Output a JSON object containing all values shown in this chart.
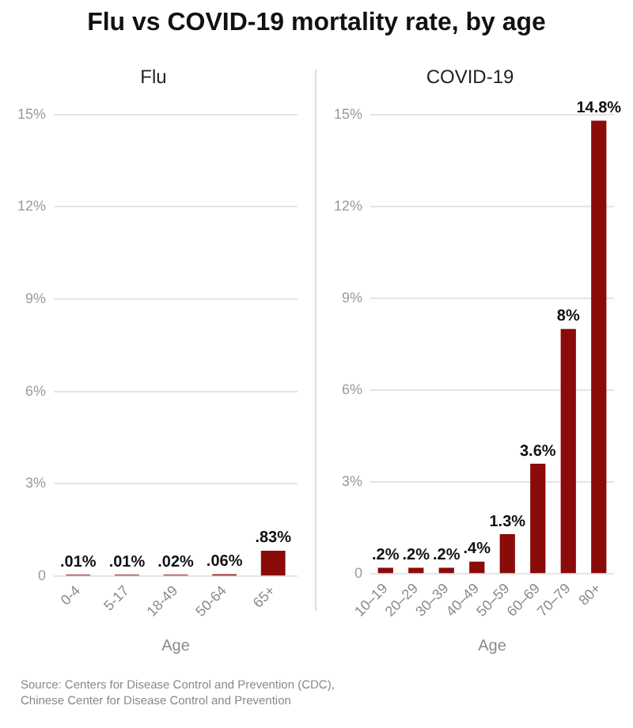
{
  "chart_data": [
    {
      "type": "bar",
      "title": "Flu vs COVID-19 mortality rate, by age",
      "subtitle": "Flu",
      "xlabel": "Age",
      "categories": [
        "0-4",
        "5-17",
        "18-49",
        "50-64",
        "65+"
      ],
      "series": [
        {
          "color": "#8b0a0a",
          "values": [
            0.01,
            0.01,
            0.02,
            0.06,
            0.83
          ],
          "value_labels": [
            ".01%",
            ".01%",
            ".02%",
            ".06%",
            ".83%"
          ]
        }
      ],
      "ylim": [
        0,
        15
      ],
      "yticks": [
        0,
        {
          "value": 3,
          "label": "3%"
        },
        {
          "value": 6,
          "label": "6%"
        },
        {
          "value": 9,
          "label": "9%"
        },
        {
          "value": 12,
          "label": "12%"
        },
        {
          "value": 15,
          "label": "15%"
        }
      ],
      "grid": "y",
      "annotations": [
        "Source: Centers for Disease Control and Prevention (CDC),",
        "Chinese Center for Disease Control and Prevention"
      ]
    },
    {
      "type": "bar",
      "title": "COVID-19",
      "xlabel": "Age",
      "categories": [
        "10–19",
        "20–29",
        "30–39",
        "40–49",
        "50–59",
        "60–69",
        "70–79",
        "80+"
      ],
      "series": [
        {
          "color": "#8b0a0a",
          "values": [
            0.2,
            0.2,
            0.2,
            0.4,
            1.3,
            3.6,
            8,
            14.8
          ],
          "value_labels": [
            ".2%",
            ".2%",
            ".2%",
            ".4%",
            "1.3%",
            "3.6%",
            "8%",
            "14.8%"
          ]
        }
      ],
      "ylim": [
        0,
        15
      ],
      "yticks": [
        0,
        {
          "value": 3,
          "label": "3%"
        },
        {
          "value": 6,
          "label": "6%"
        },
        {
          "value": 9,
          "label": "9%"
        },
        {
          "value": 12,
          "label": "12%"
        },
        {
          "value": 15,
          "label": "15%"
        }
      ],
      "grid": "y"
    }
  ]
}
